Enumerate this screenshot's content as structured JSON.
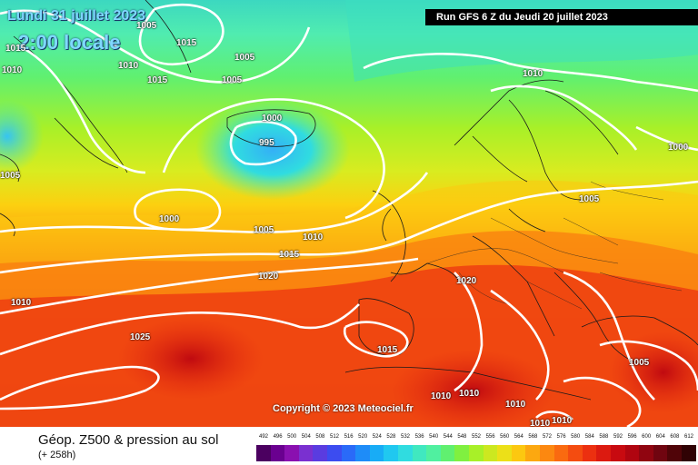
{
  "header": {
    "date": "Lundi 31 juillet 2023",
    "time": "2:00 locale",
    "run": "Run GFS 6 Z du Jeudi 20 juillet 2023"
  },
  "copyright": "Copyright © 2023 Meteociel.fr",
  "legend": {
    "title": "Géop. Z500 & pression au sol",
    "subtitle": "(+ 258h)",
    "scale": [
      "492",
      "496",
      "500",
      "504",
      "508",
      "512",
      "516",
      "520",
      "524",
      "528",
      "532",
      "536",
      "540",
      "544",
      "548",
      "552",
      "556",
      "560",
      "564",
      "568",
      "572",
      "576",
      "580",
      "584",
      "588",
      "592",
      "596",
      "600",
      "604",
      "608",
      "612"
    ],
    "colors": [
      "#4b0060",
      "#6a0090",
      "#8a10b0",
      "#7a30d0",
      "#5a3ce0",
      "#3c4cf0",
      "#2a6af8",
      "#1e8cf8",
      "#18acf6",
      "#20c8f0",
      "#30dce0",
      "#40e8c0",
      "#50f0a0",
      "#60f070",
      "#80f040",
      "#a8f028",
      "#cce820",
      "#ece018",
      "#fcc810",
      "#fca810",
      "#fc8810",
      "#fa6a10",
      "#f44c10",
      "#ec3010",
      "#dc1a10",
      "#c80a10",
      "#b00510",
      "#900510",
      "#700510",
      "#500408",
      "#300204"
    ]
  },
  "isobars": [
    {
      "text": "1005",
      "id": "a"
    },
    {
      "text": "1015",
      "id": "b"
    },
    {
      "text": "1010",
      "id": "c"
    },
    {
      "text": "1015",
      "id": "d"
    },
    {
      "text": "1005",
      "id": "e"
    },
    {
      "text": "1010",
      "id": "f"
    },
    {
      "text": "1015",
      "id": "g"
    },
    {
      "text": "1005",
      "id": "h"
    },
    {
      "text": "1010",
      "id": "i"
    },
    {
      "text": "1000",
      "id": "j"
    },
    {
      "text": "995",
      "id": "k"
    },
    {
      "text": "1005",
      "id": "l"
    },
    {
      "text": "1000",
      "id": "m"
    },
    {
      "text": "1000",
      "id": "n"
    },
    {
      "text": "1005",
      "id": "o"
    },
    {
      "text": "1005",
      "id": "p"
    },
    {
      "text": "1010",
      "id": "q"
    },
    {
      "text": "1015",
      "id": "r"
    },
    {
      "text": "1020",
      "id": "s"
    },
    {
      "text": "1020",
      "id": "t"
    },
    {
      "text": "1010",
      "id": "u"
    },
    {
      "text": "1025",
      "id": "v"
    },
    {
      "text": "1015",
      "id": "w"
    },
    {
      "text": "1005",
      "id": "x"
    },
    {
      "text": "1010",
      "id": "y"
    },
    {
      "text": "1010",
      "id": "z"
    },
    {
      "text": "1010",
      "id": "aa"
    },
    {
      "text": "1010",
      "id": "ab"
    },
    {
      "text": "1010",
      "id": "ac"
    }
  ]
}
